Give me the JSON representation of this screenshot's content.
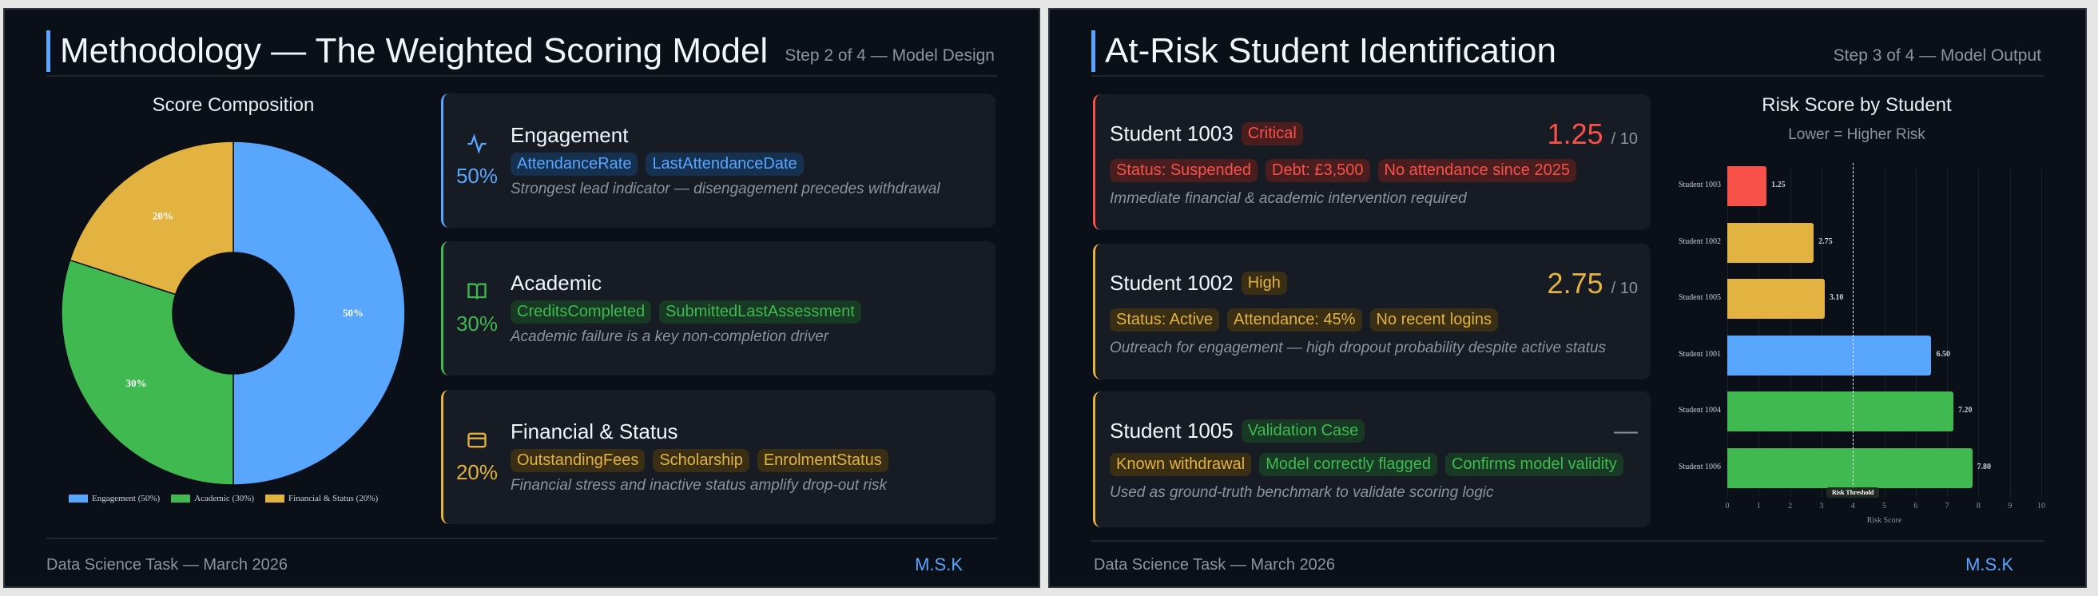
{
  "slide1": {
    "title": "Methodology — The Weighted Scoring Model",
    "step": "Step 2 of 4 — Model Design",
    "footer": "Data Science Task — March 2026",
    "brand": "M.S.K",
    "cards": [
      {
        "icon": "activity-icon",
        "pct": "50%",
        "title": "Engagement",
        "tags": [
          "AttendanceRate",
          "LastAttendanceDate"
        ],
        "desc": "Strongest lead indicator — disengagement precedes withdrawal",
        "color": "#58a6ff"
      },
      {
        "icon": "book-icon",
        "pct": "30%",
        "title": "Academic",
        "tags": [
          "CreditsCompleted",
          "SubmittedLastAssessment"
        ],
        "desc": "Academic failure is a key non-completion driver",
        "color": "#3fb950"
      },
      {
        "icon": "credit-card-icon",
        "pct": "20%",
        "title": "Financial & Status",
        "tags": [
          "OutstandingFees",
          "Scholarship",
          "EnrolmentStatus"
        ],
        "desc": "Financial stress and inactive status amplify drop-out risk",
        "color": "#e3b341"
      }
    ]
  },
  "slide2": {
    "title": "At-Risk Student Identification",
    "step": "Step 3 of 4 — Model Output",
    "footer": "Data Science Task — March 2026",
    "brand": "M.S.K",
    "cards": [
      {
        "name": "Student 1003",
        "badge": "Critical",
        "score": "1.25",
        "outof": "/ 10",
        "tags": [
          "Status: Suspended",
          "Debt: £3,500",
          "No attendance since 2025"
        ],
        "desc": "Immediate financial & academic intervention required"
      },
      {
        "name": "Student 1002",
        "badge": "High",
        "score": "2.75",
        "outof": "/ 10",
        "tags": [
          "Status: Active",
          "Attendance: 45%",
          "No recent logins"
        ],
        "desc": "Outreach for engagement — high dropout probability despite active status"
      },
      {
        "name": "Student 1005",
        "badge": "Validation Case",
        "score": "—",
        "tags": [
          "Known withdrawal",
          "Model correctly flagged",
          "Confirms model validity"
        ],
        "desc": "Used as ground-truth benchmark to validate scoring logic"
      }
    ]
  },
  "chart_data": [
    {
      "type": "pie",
      "title": "Score Composition",
      "categories": [
        "Engagement (50%)",
        "Academic (30%)",
        "Financial & Status (20%)"
      ],
      "values": [
        50,
        30,
        20
      ],
      "labels": [
        "50%",
        "30%",
        "20%"
      ],
      "colors": [
        "#58a6ff",
        "#3fb950",
        "#e3b341"
      ],
      "donut": true,
      "legend": "bottom"
    },
    {
      "type": "bar",
      "orientation": "horizontal",
      "title": "Risk Score by Student",
      "subtitle": "Lower = Higher Risk",
      "categories": [
        "Student 1003",
        "Student 1002",
        "Student 1005",
        "Student 1001",
        "Student 1004",
        "Student 1006"
      ],
      "values": [
        1.25,
        2.75,
        3.1,
        6.5,
        7.2,
        7.8
      ],
      "value_labels": [
        "1.25",
        "2.75",
        "3.10",
        "6.50",
        "7.20",
        "7.80"
      ],
      "colors": [
        "#f85149",
        "#e3b341",
        "#e3b341",
        "#58a6ff",
        "#3fb950",
        "#3fb950"
      ],
      "xlabel": "Risk Score",
      "xlim": [
        0,
        10
      ],
      "xticks": [
        "0",
        "1",
        "2",
        "3",
        "4",
        "5",
        "6",
        "7",
        "8",
        "9",
        "10"
      ],
      "threshold": {
        "value": 4,
        "label": "Risk Threshold"
      },
      "grid": true
    }
  ]
}
